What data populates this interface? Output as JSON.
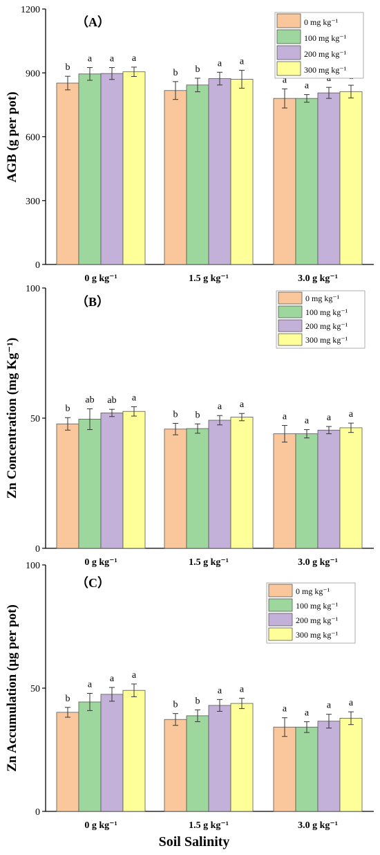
{
  "colors": [
    "#f9c79b",
    "#9ed79d",
    "#c3b1d9",
    "#ffff99"
  ],
  "x_axis_title": "Soil Salinity",
  "chart_data": [
    {
      "type": "bar",
      "panel_label": "（A）",
      "ylabel": "AGB (g per pot)",
      "ylim": [
        0,
        1200
      ],
      "yticks": [
        "0",
        "300",
        "600",
        "900",
        "1200"
      ],
      "categories": [
        "0 g kg⁻¹",
        "1.5 g kg⁻¹",
        "3.0 g kg⁻¹"
      ],
      "legend_position": "top-right",
      "series": [
        {
          "name": "0 mg kg⁻¹",
          "values": [
            852,
            817,
            780
          ],
          "errors": [
            32,
            42,
            45
          ],
          "letters": [
            "b",
            "b",
            "a"
          ]
        },
        {
          "name": "100 mg kg⁻¹",
          "values": [
            895,
            843,
            780
          ],
          "errors": [
            30,
            32,
            18
          ],
          "letters": [
            "a",
            "b",
            "a"
          ]
        },
        {
          "name": "200 mg kg⁻¹",
          "values": [
            897,
            873,
            806
          ],
          "errors": [
            28,
            30,
            26
          ],
          "letters": [
            "a",
            "a",
            "a"
          ]
        },
        {
          "name": "300 mg kg⁻¹",
          "values": [
            905,
            870,
            812
          ],
          "errors": [
            22,
            42,
            30
          ],
          "letters": [
            "a",
            "a",
            "a"
          ]
        }
      ]
    },
    {
      "type": "bar",
      "panel_label": "（B）",
      "ylabel": "Zn Concentration  (mg Kg⁻¹)",
      "ylim": [
        0,
        100
      ],
      "yticks": [
        "0",
        "50",
        "100"
      ],
      "categories": [
        "0 g kg⁻¹",
        "1.5 g kg⁻¹",
        "3.0 g kg⁻¹"
      ],
      "legend_position": "top-right",
      "series": [
        {
          "name": "0 mg kg⁻¹",
          "values": [
            47.8,
            45.8,
            44.0
          ],
          "errors": [
            2.4,
            2.2,
            3.2
          ],
          "letters": [
            "b",
            "b",
            "a"
          ]
        },
        {
          "name": "100 mg kg⁻¹",
          "values": [
            49.6,
            46.0,
            44.0
          ],
          "errors": [
            4.0,
            1.8,
            1.6
          ],
          "letters": [
            "ab",
            "b",
            "a"
          ]
        },
        {
          "name": "200 mg kg⁻¹",
          "values": [
            52.0,
            49.2,
            45.4
          ],
          "errors": [
            1.4,
            1.8,
            1.4
          ],
          "letters": [
            "ab",
            "a",
            "a"
          ]
        },
        {
          "name": "300 mg kg⁻¹",
          "values": [
            52.6,
            50.4,
            46.3
          ],
          "errors": [
            1.8,
            1.4,
            1.8
          ],
          "letters": [
            "a",
            "a",
            "a"
          ]
        }
      ]
    },
    {
      "type": "bar",
      "panel_label": "（C）",
      "ylabel": "Zn Accumulation  (μg per pot)",
      "ylim": [
        0,
        100
      ],
      "yticks": [
        "0",
        "50",
        "100"
      ],
      "categories": [
        "0 g kg⁻¹",
        "1.5 g kg⁻¹",
        "3.0 g kg⁻¹"
      ],
      "legend_position": "top-right",
      "series": [
        {
          "name": "0 mg kg⁻¹",
          "values": [
            40.2,
            37.3,
            34.2
          ],
          "errors": [
            2.0,
            2.4,
            3.8
          ],
          "letters": [
            "b",
            "b",
            "a"
          ]
        },
        {
          "name": "100 mg kg⁻¹",
          "values": [
            44.4,
            38.8,
            34.2
          ],
          "errors": [
            3.5,
            2.4,
            2.2
          ],
          "letters": [
            "a",
            "b",
            "a"
          ]
        },
        {
          "name": "200 mg kg⁻¹",
          "values": [
            47.5,
            43.0,
            36.6
          ],
          "errors": [
            2.8,
            2.4,
            2.8
          ],
          "letters": [
            "a",
            "a",
            "a"
          ]
        },
        {
          "name": "300 mg kg⁻¹",
          "values": [
            49.1,
            43.8,
            37.8
          ],
          "errors": [
            2.6,
            2.1,
            2.6
          ],
          "letters": [
            "a",
            "a",
            "a"
          ]
        }
      ]
    }
  ]
}
